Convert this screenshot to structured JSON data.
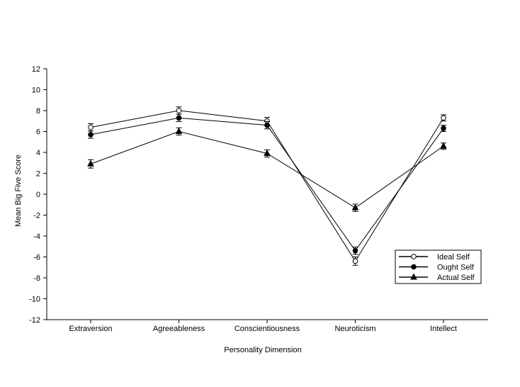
{
  "chart_data": {
    "type": "line",
    "title": "",
    "xlabel": "Personality Dimension",
    "ylabel": "Mean Big Five Score",
    "categories": [
      "Extraversion",
      "Agreeableness",
      "Conscientiousness",
      "Neuroticism",
      "Intellect"
    ],
    "ylim": [
      -12,
      12
    ],
    "yticks": [
      12,
      10,
      8,
      6,
      4,
      2,
      0,
      -2,
      -4,
      -6,
      -8,
      -10,
      -12
    ],
    "grid": false,
    "legend_position": "bottom-right",
    "series": [
      {
        "name": "Ideal Self",
        "marker": "open-circle",
        "values": [
          6.4,
          8.0,
          7.0,
          -6.4,
          7.3
        ],
        "errors": [
          0.35,
          0.35,
          0.35,
          0.4,
          0.3
        ]
      },
      {
        "name": "Ought Self",
        "marker": "filled-circle",
        "values": [
          5.7,
          7.3,
          6.6,
          -5.4,
          6.3
        ],
        "errors": [
          0.35,
          0.35,
          0.35,
          0.35,
          0.3
        ]
      },
      {
        "name": "Actual Self",
        "marker": "filled-triangle",
        "values": [
          2.9,
          6.0,
          3.9,
          -1.3,
          4.6
        ],
        "errors": [
          0.4,
          0.35,
          0.35,
          0.35,
          0.3
        ]
      }
    ]
  }
}
